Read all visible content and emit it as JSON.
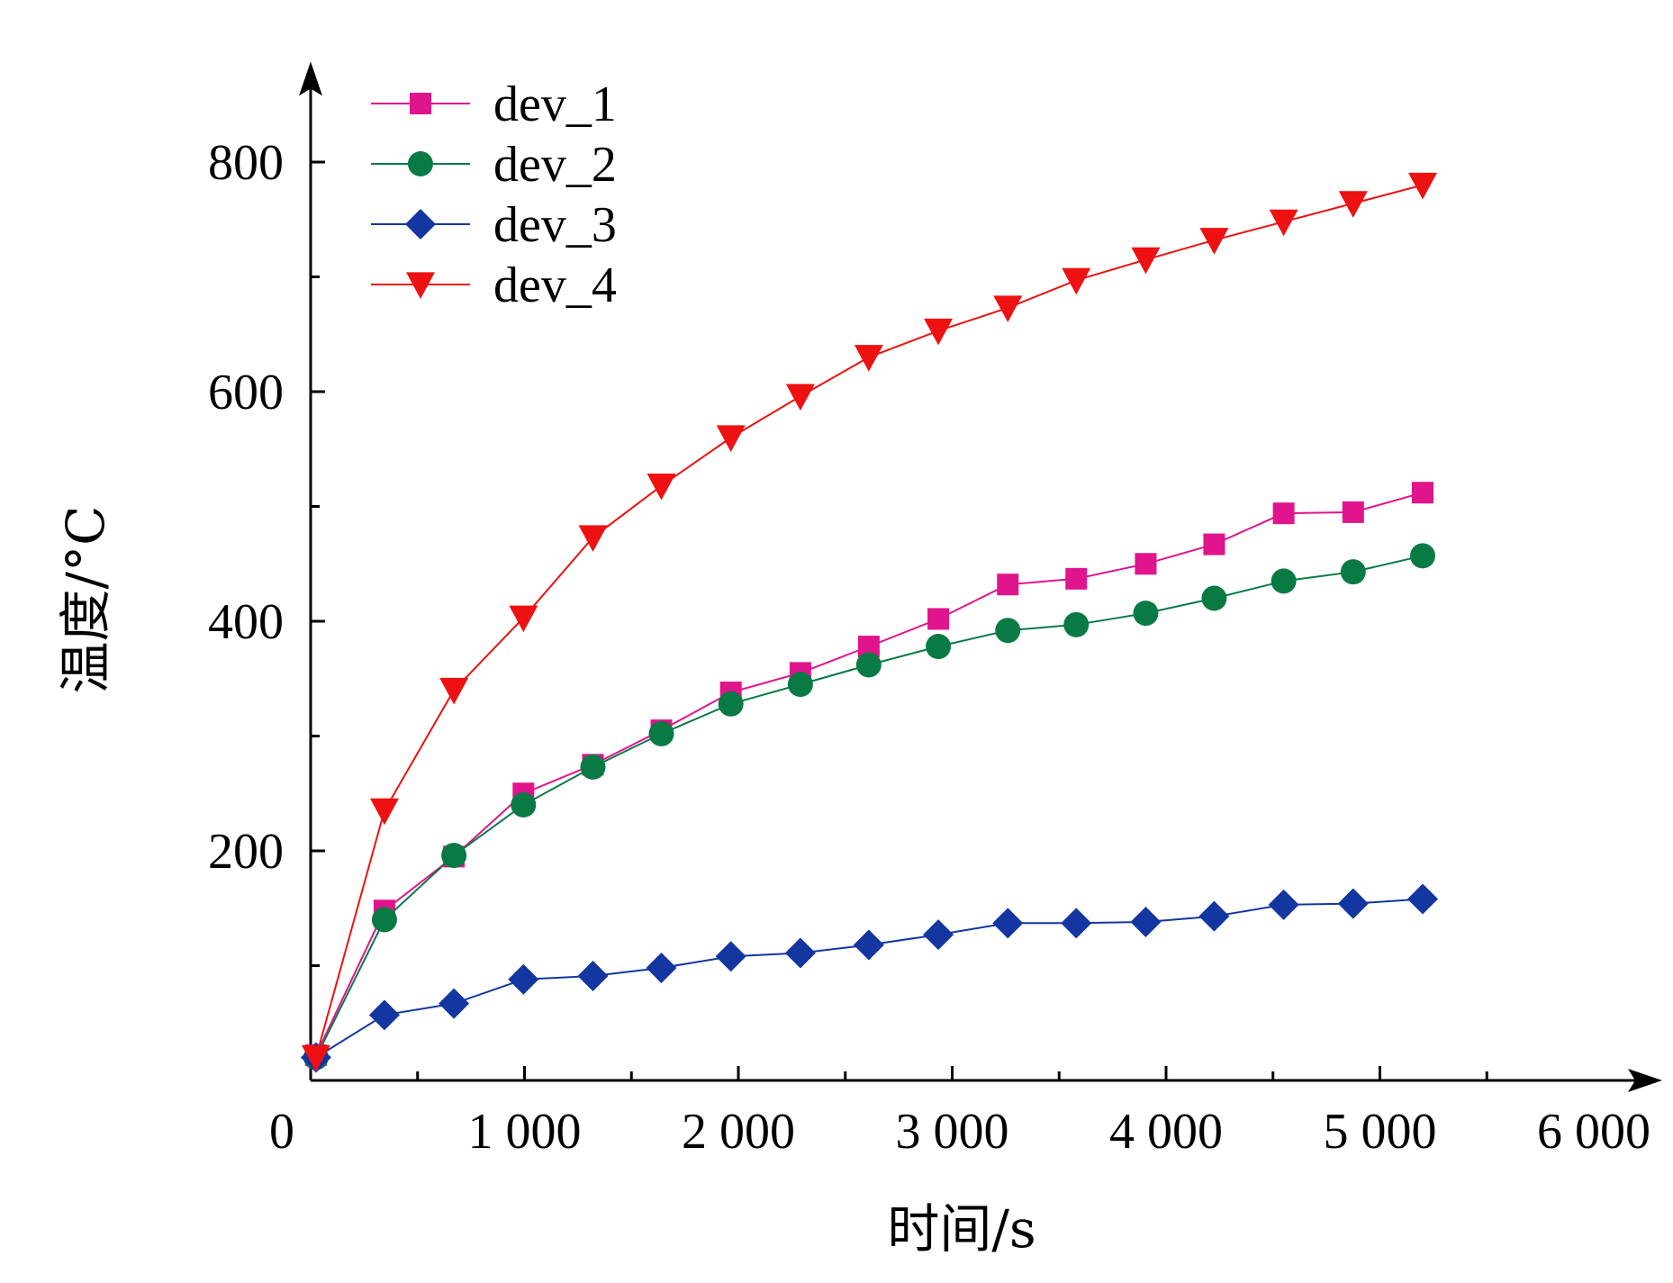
{
  "chart_data": {
    "type": "line",
    "xlabel": "时间/s",
    "ylabel": "温度/°C",
    "xlim": [
      0,
      6000
    ],
    "ylim": [
      0,
      875
    ],
    "x_ticks": [
      0,
      1000,
      2000,
      3000,
      4000,
      5000,
      6000
    ],
    "x_tick_labels": [
      "0",
      "1 000",
      "2 000",
      "3 000",
      "4 000",
      "5 000",
      "6 000"
    ],
    "y_ticks": [
      200,
      400,
      600,
      800
    ],
    "y_tick_labels": [
      "200",
      "400",
      "600",
      "800"
    ],
    "grid": false,
    "legend_position": "top-left",
    "x": [
      25,
      345,
      670,
      995,
      1320,
      1640,
      1965,
      2290,
      2610,
      2935,
      3260,
      3580,
      3905,
      4225,
      4550,
      4875,
      5200
    ],
    "series": [
      {
        "name": "dev_1",
        "color": "#e0148c",
        "marker": "square",
        "values": [
          22,
          148,
          195,
          250,
          275,
          305,
          338,
          355,
          378,
          402,
          432,
          437,
          450,
          467,
          494,
          495,
          512
        ]
      },
      {
        "name": "dev_2",
        "color": "#0a7a45",
        "marker": "circle",
        "values": [
          20,
          140,
          196,
          240,
          273,
          302,
          328,
          345,
          362,
          378,
          392,
          397,
          407,
          420,
          435,
          443,
          457
        ]
      },
      {
        "name": "dev_3",
        "color": "#1336a0",
        "marker": "diamond",
        "values": [
          20,
          57,
          67,
          88,
          91,
          98,
          108,
          111,
          118,
          127,
          137,
          137,
          138,
          143,
          153,
          154,
          158
        ]
      },
      {
        "name": "dev_4",
        "color": "#ee1111",
        "marker": "triangle-down",
        "values": [
          20,
          235,
          340,
          403,
          473,
          518,
          560,
          596,
          630,
          653,
          673,
          697,
          715,
          732,
          748,
          764,
          780
        ]
      }
    ]
  }
}
